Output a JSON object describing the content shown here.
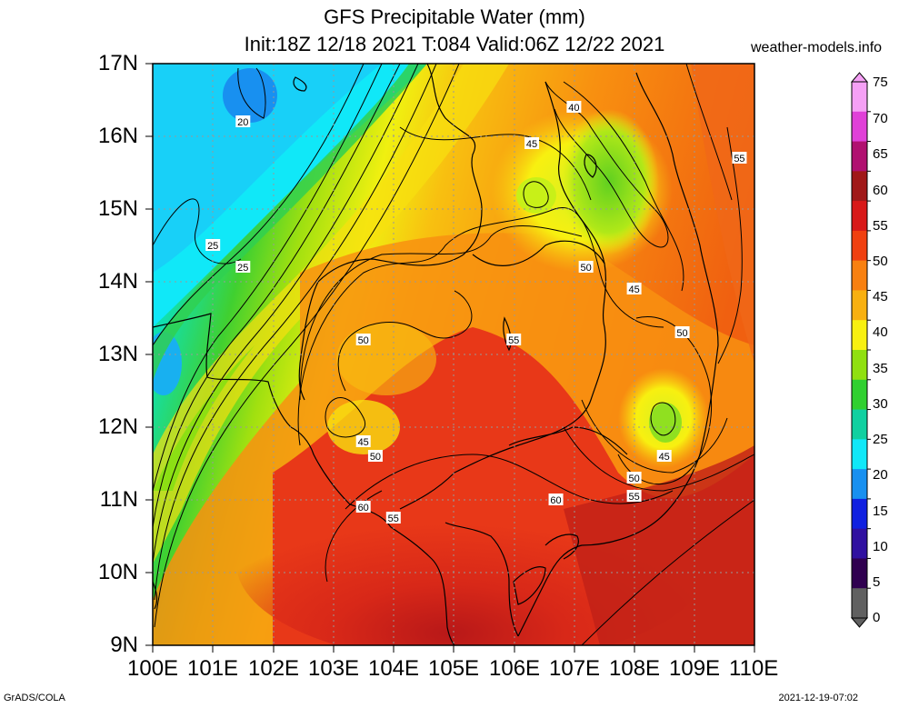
{
  "header": {
    "title": "GFS Precipitable Water (mm)",
    "subtitle": "Init:18Z 12/18 2021 T:084 Valid:06Z 12/22 2021",
    "brand": "weather-models.info"
  },
  "axes": {
    "lat_labels": [
      "17N",
      "16N",
      "15N",
      "14N",
      "13N",
      "12N",
      "11N",
      "10N",
      "9N"
    ],
    "lon_labels": [
      "100E",
      "101E",
      "102E",
      "103E",
      "104E",
      "105E",
      "106E",
      "107E",
      "108E",
      "109E",
      "110E"
    ]
  },
  "colorbar": {
    "labels": [
      "75",
      "70",
      "65",
      "60",
      "55",
      "50",
      "45",
      "40",
      "35",
      "30",
      "25",
      "20",
      "15",
      "10",
      "5",
      "0"
    ],
    "colors": [
      "#f5a0f5",
      "#e040d8",
      "#b01070",
      "#a01818",
      "#d81818",
      "#f04010",
      "#f88010",
      "#f8b010",
      "#f8f010",
      "#90e010",
      "#30d030",
      "#10d0a0",
      "#10e8f8",
      "#1890f0",
      "#1020e0",
      "#3010a0",
      "#300050",
      "#606060"
    ]
  },
  "contours": [
    {
      "value": "20",
      "lon": 101.5,
      "lat": 16.2
    },
    {
      "value": "25",
      "lon": 101.0,
      "lat": 14.5
    },
    {
      "value": "25",
      "lon": 101.5,
      "lat": 14.2
    },
    {
      "value": "40",
      "lon": 107.0,
      "lat": 16.4
    },
    {
      "value": "45",
      "lon": 106.3,
      "lat": 15.9
    },
    {
      "value": "50",
      "lon": 107.2,
      "lat": 14.2
    },
    {
      "value": "45",
      "lon": 108.0,
      "lat": 13.9
    },
    {
      "value": "50",
      "lon": 108.8,
      "lat": 13.3
    },
    {
      "value": "50",
      "lon": 103.5,
      "lat": 13.2
    },
    {
      "value": "55",
      "lon": 106.0,
      "lat": 13.2
    },
    {
      "value": "45",
      "lon": 103.5,
      "lat": 11.8
    },
    {
      "value": "50",
      "lon": 103.7,
      "lat": 11.6
    },
    {
      "value": "45",
      "lon": 108.5,
      "lat": 11.6
    },
    {
      "value": "50",
      "lon": 108.0,
      "lat": 11.3
    },
    {
      "value": "55",
      "lon": 108.0,
      "lat": 11.05
    },
    {
      "value": "60",
      "lon": 106.7,
      "lat": 11.0
    },
    {
      "value": "60",
      "lon": 103.5,
      "lat": 10.9
    },
    {
      "value": "55",
      "lon": 104.0,
      "lat": 10.75
    },
    {
      "value": "55",
      "lon": 109.75,
      "lat": 15.7
    }
  ],
  "footer": {
    "left": "GrADS/COLA",
    "right": "2021-12-19-07:02"
  }
}
